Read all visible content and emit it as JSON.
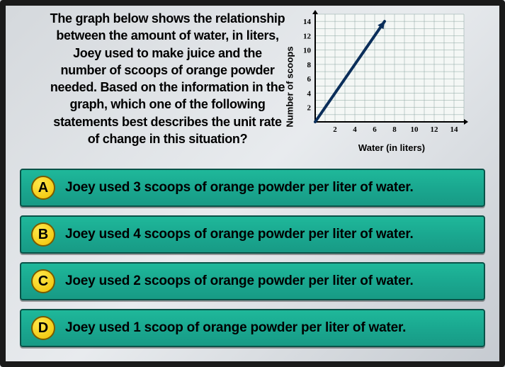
{
  "question": "The graph below shows the relationship between the amount of water, in liters, Joey used to make juice and the number of scoops of orange powder needed. Based on the information in the graph, which one of the following statements best describes the unit rate of change in this situation?",
  "chart": {
    "type": "line",
    "xlabel": "Water (in liters)",
    "ylabel": "Number of scoops",
    "xlim": [
      0,
      15
    ],
    "ylim": [
      0,
      15
    ],
    "xticks": [
      2,
      4,
      6,
      8,
      10,
      12,
      14
    ],
    "yticks": [
      2,
      4,
      6,
      8,
      10,
      12,
      14
    ],
    "grid_color": "#8aa5a0",
    "axis_color": "#000000",
    "background_color": "#f4f7f5",
    "line": {
      "points": [
        [
          0,
          0
        ],
        [
          7,
          14
        ]
      ],
      "color": "#0b2e5a",
      "width": 4
    },
    "arrow_at_end": true,
    "tick_fontsize": 11
  },
  "options": [
    {
      "letter": "A",
      "text": "Joey used 3 scoops of orange powder per liter of water."
    },
    {
      "letter": "B",
      "text": "Joey used 4 scoops of orange powder per liter of water."
    },
    {
      "letter": "C",
      "text": "Joey used 2 scoops of orange powder per liter of water."
    },
    {
      "letter": "D",
      "text": "Joey used 1 scoop of orange powder per liter of water."
    }
  ],
  "colors": {
    "option_bg": "#1aa890",
    "option_border": "#0a5248",
    "badge_fill": "#f0c000",
    "badge_border": "#7a5a00"
  }
}
